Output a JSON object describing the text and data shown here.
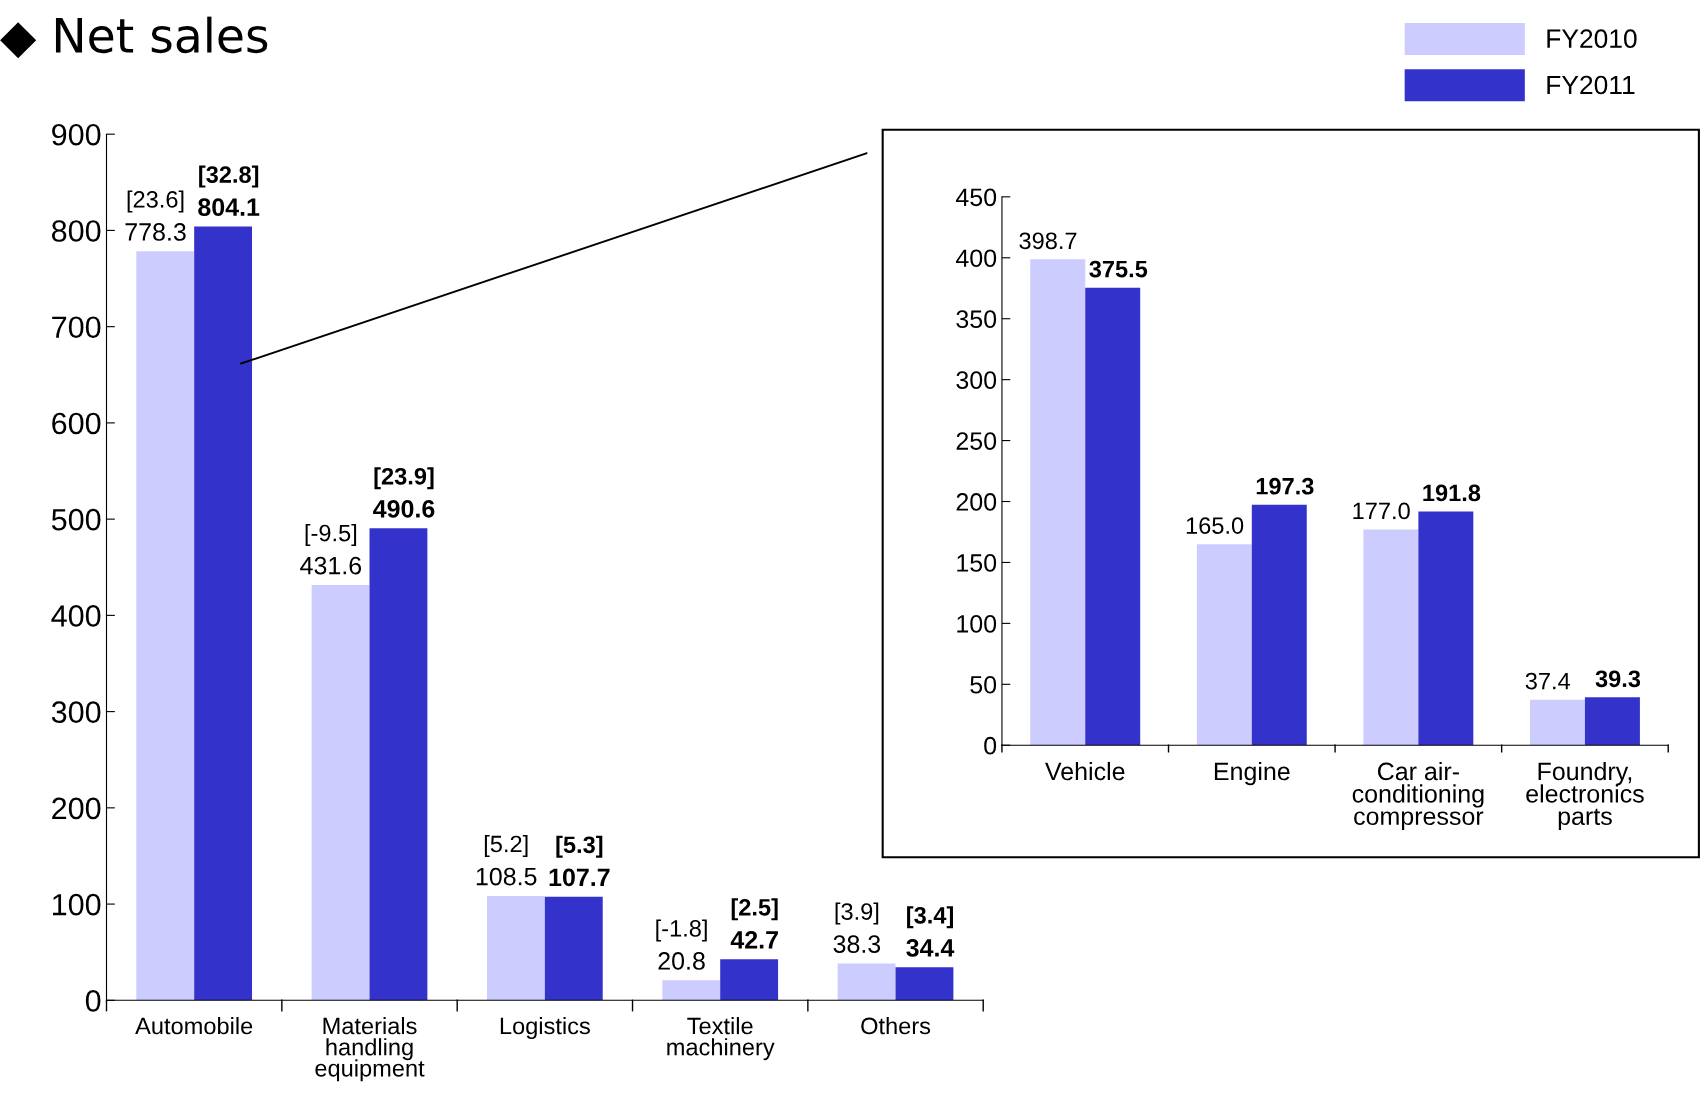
{
  "chart_data": [
    {
      "type": "bar",
      "title": "◆ Net sales",
      "categories": [
        "Automobile",
        "Materials\nhandling\nequipment",
        "Logistics",
        "Textile\nmachinery",
        "Others"
      ],
      "series": [
        {
          "name": "FY2010",
          "color": "#ccccff",
          "values": [
            778.3,
            431.6,
            108.5,
            20.8,
            38.3
          ],
          "value_labels": [
            "778.3",
            "431.6",
            "108.5",
            "20.8",
            "38.3"
          ]
        },
        {
          "name": "FY2011",
          "color": "#3333cc",
          "values": [
            804.1,
            490.6,
            107.7,
            42.7,
            34.4
          ],
          "value_labels": [
            "804.1",
            "490.6",
            "107.7",
            "42.7",
            "34.4"
          ]
        }
      ],
      "ylim": [
        0,
        900
      ],
      "yticks": [
        0,
        100,
        200,
        300,
        400,
        500,
        600,
        700,
        800,
        900
      ],
      "grid": false,
      "legend": "top right",
      "annotations": [
        {
          "text": "[23.6]",
          "x": "Automobile",
          "y": 778.3
        },
        {
          "text": "[32.8]",
          "x": "Automobile",
          "y": 804.1
        },
        {
          "text": "[-9.5]",
          "x": "Materials\nhandling\nequipment",
          "y": 431.6
        },
        {
          "text": "[23.9]",
          "x": "Materials\nhandling\nequipment",
          "y": 490.6
        },
        {
          "text": "[5.2]",
          "x": "Logistics",
          "y": 108.5
        },
        {
          "text": "[5.3]",
          "x": "Logistics",
          "y": 107.7
        },
        {
          "text": "[-1.8]",
          "x": "Textile\nmachinery",
          "y": 20.8
        },
        {
          "text": "[2.5]",
          "x": "Textile\nmachinery",
          "y": 42.7
        },
        {
          "text": "[3.9]",
          "x": "Others",
          "y": 38.3
        },
        {
          "text": "[3.4]",
          "x": "Others",
          "y": 34.4
        }
      ]
    },
    {
      "type": "bar",
      "categories": [
        "Vehicle",
        "Engine",
        "Car air-\nconditioning\ncompressor",
        "Foundry,\nelectronics\nparts"
      ],
      "series": [
        {
          "color": "#ccccff",
          "values": [
            398.7,
            165.0,
            177.0,
            37.4
          ],
          "value_labels": [
            "398.7",
            "165.0",
            "177.0",
            "37.4"
          ]
        },
        {
          "color": "#3333cc",
          "values": [
            375.5,
            197.3,
            191.8,
            39.3
          ],
          "value_labels": [
            "375.5",
            "197.3",
            "191.8",
            "39.3"
          ]
        }
      ],
      "ylim": [
        0,
        450
      ],
      "yticks": [
        0,
        50,
        100,
        150,
        200,
        250,
        300,
        350,
        400,
        450
      ],
      "grid": false
    }
  ]
}
